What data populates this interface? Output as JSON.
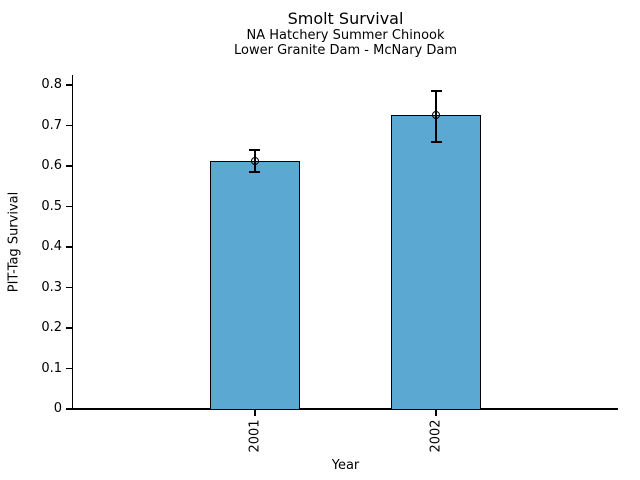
{
  "chart_data": {
    "type": "bar",
    "title": "Smolt Survival",
    "subtitle_line1": "NA Hatchery Summer Chinook",
    "subtitle_line2": "Lower Granite Dam - McNary Dam",
    "xlabel": "Year",
    "ylabel": "PIT-Tag Survival",
    "categories": [
      "2001",
      "2002"
    ],
    "values": [
      0.612,
      0.725
    ],
    "error_low": [
      0.585,
      0.66
    ],
    "error_high": [
      0.64,
      0.785
    ],
    "ylim": [
      0,
      0.825
    ],
    "yticks": [
      0,
      0.1,
      0.2,
      0.3,
      0.4,
      0.5,
      0.6,
      0.7,
      0.8
    ],
    "ytick_labels": [
      "0",
      "0.1",
      "0.2",
      "0.3",
      "0.4",
      "0.5",
      "0.6",
      "0.7",
      "0.8"
    ],
    "xtick_label_rotation_deg": 90,
    "bar_fill_color": "#5BA8D3",
    "bar_edge_color": "#000000",
    "error_bar_color": "#000000",
    "error_marker": "open-circle",
    "grid": false,
    "legend": null,
    "background_color": "#ffffff"
  }
}
